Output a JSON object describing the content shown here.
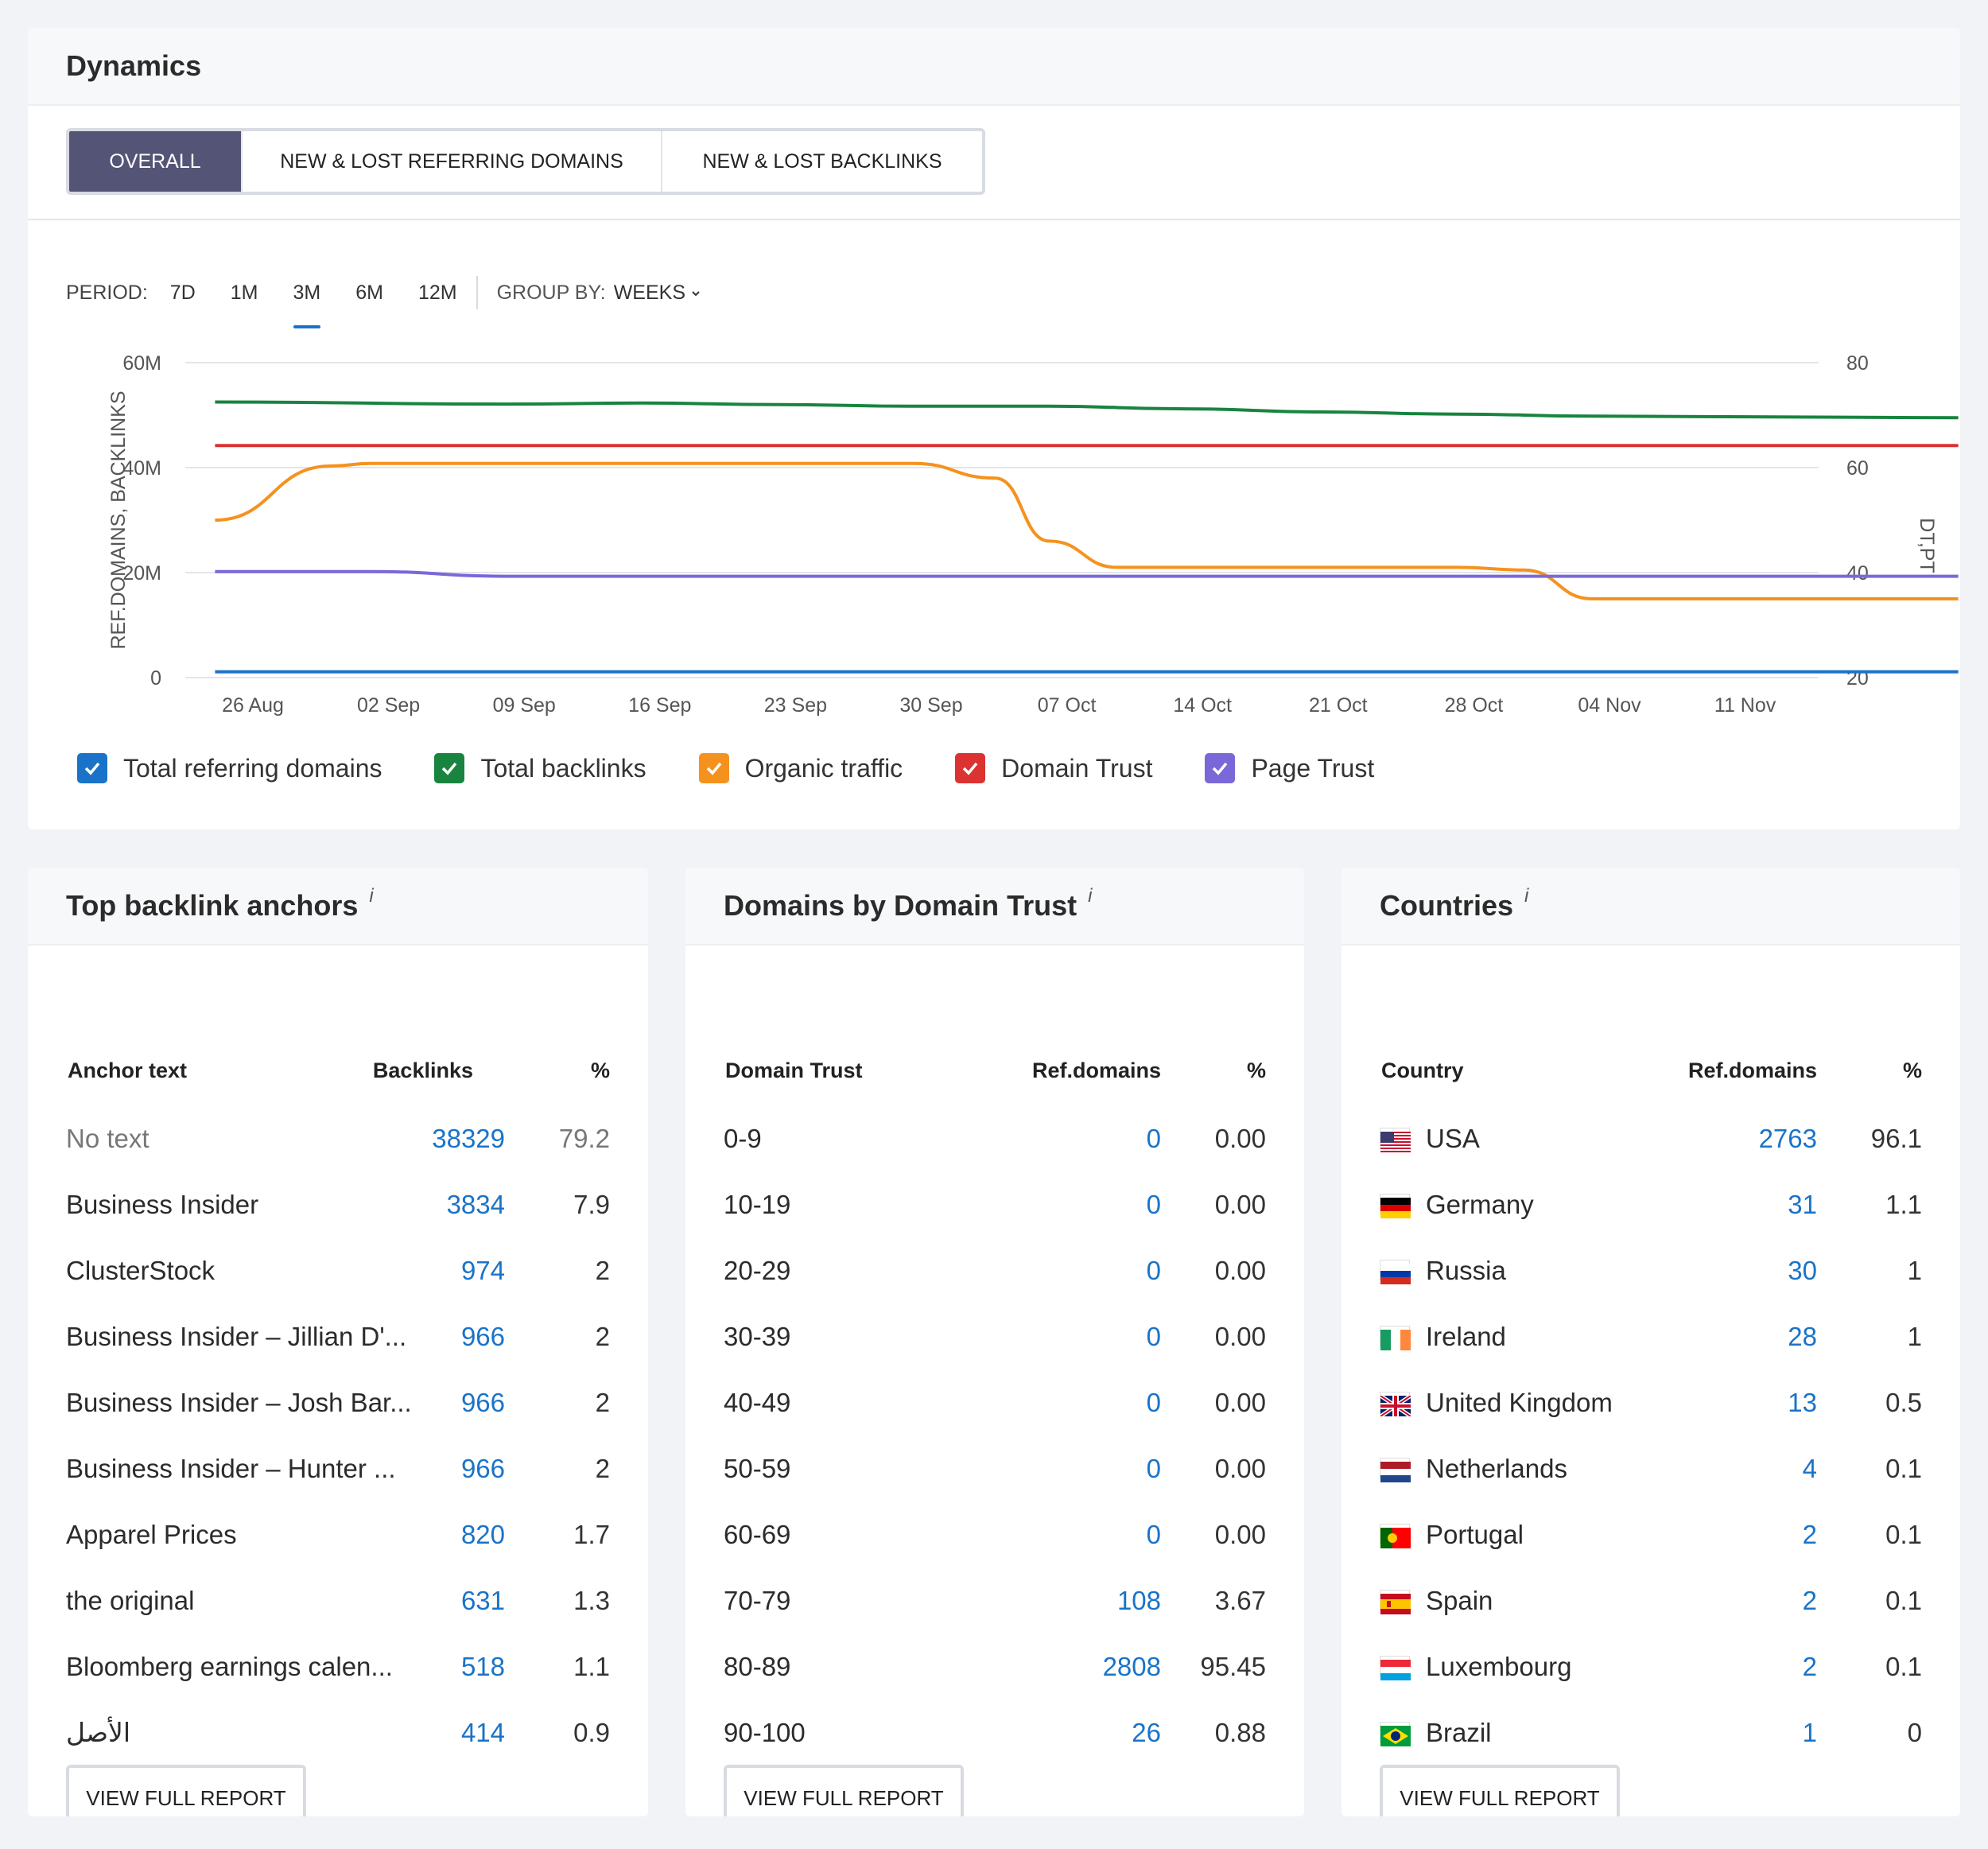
{
  "dynamics": {
    "title": "Dynamics",
    "tabs": [
      "OVERALL",
      "NEW & LOST REFERRING DOMAINS",
      "NEW & LOST BACKLINKS"
    ],
    "active_tab": 0,
    "period_label": "PERIOD:",
    "periods": [
      "7D",
      "1M",
      "3M",
      "6M",
      "12M"
    ],
    "active_period": 2,
    "group_by_label": "GROUP BY:",
    "group_by_value": "WEEKS",
    "chevron_icon": "chevron-down-icon",
    "legend": [
      {
        "label": "Total referring domains",
        "color": "#1a73c8",
        "checked": true
      },
      {
        "label": "Total backlinks",
        "color": "#18843f",
        "checked": true
      },
      {
        "label": "Organic traffic",
        "color": "#f5921e",
        "checked": true
      },
      {
        "label": "Domain Trust",
        "color": "#dc3232",
        "checked": true
      },
      {
        "label": "Page Trust",
        "color": "#7a68d8",
        "checked": true
      }
    ]
  },
  "chart_data": {
    "type": "line",
    "x": [
      "26 Aug",
      "02 Sep",
      "09 Sep",
      "16 Sep",
      "23 Sep",
      "30 Sep",
      "07 Oct",
      "14 Oct",
      "21 Oct",
      "28 Oct",
      "04 Nov",
      "11 Nov"
    ],
    "x_extended_end": 12.7,
    "ylabel_left": "REF.DOMAINS, BACKLINKS",
    "ylabel_right": "DT,PT",
    "y_left_ticks": [
      "0",
      "20M",
      "40M",
      "60M"
    ],
    "y_left_range": [
      0,
      60
    ],
    "y_right_ticks": [
      "20",
      "40",
      "60",
      "80"
    ],
    "y_right_range": [
      20,
      80
    ],
    "series": [
      {
        "name": "Total referring domains",
        "axis": "left",
        "color": "#1a73c8",
        "points": [
          [
            -0.15,
            1.1
          ],
          [
            12.7,
            1.1
          ]
        ]
      },
      {
        "name": "Total backlinks",
        "axis": "left",
        "color": "#18843f",
        "points": [
          [
            -0.15,
            52.5
          ],
          [
            2,
            52.1
          ],
          [
            3,
            52.3
          ],
          [
            4,
            52
          ],
          [
            5,
            51.7
          ],
          [
            6,
            51.7
          ],
          [
            7,
            51.2
          ],
          [
            8,
            50.6
          ],
          [
            9,
            50.2
          ],
          [
            10,
            49.8
          ],
          [
            11,
            49.7
          ],
          [
            12.7,
            49.5
          ]
        ]
      },
      {
        "name": "Organic traffic",
        "axis": "left",
        "color": "#f5921e",
        "points": [
          [
            -0.15,
            30
          ],
          [
            0.7,
            40.3
          ],
          [
            1,
            40.8
          ],
          [
            2,
            40.8
          ],
          [
            3,
            40.8
          ],
          [
            4,
            40.8
          ],
          [
            5,
            40.8
          ],
          [
            5.6,
            38
          ],
          [
            6,
            26
          ],
          [
            6.5,
            21
          ],
          [
            7,
            21
          ],
          [
            8,
            21
          ],
          [
            9,
            21
          ],
          [
            9.5,
            20.5
          ],
          [
            10,
            15
          ],
          [
            11,
            15
          ],
          [
            12.7,
            15
          ]
        ]
      },
      {
        "name": "Domain Trust",
        "axis": "right",
        "color": "#dc3232",
        "points": [
          [
            -0.15,
            64.2
          ],
          [
            12.7,
            64.2
          ]
        ]
      },
      {
        "name": "Page Trust",
        "axis": "right",
        "color": "#7a68d8",
        "points": [
          [
            -0.15,
            40.2
          ],
          [
            1,
            40.2
          ],
          [
            2,
            39.3
          ],
          [
            3,
            39.3
          ],
          [
            12.7,
            39.3
          ]
        ]
      }
    ]
  },
  "anchors": {
    "title": "Top backlink anchors",
    "info": "i",
    "headers": [
      "Anchor text",
      "Backlinks",
      "%"
    ],
    "rows": [
      {
        "text": "No text",
        "value": "38329",
        "pct": "79.2",
        "muted": true
      },
      {
        "text": "Business Insider",
        "value": "3834",
        "pct": "7.9"
      },
      {
        "text": "ClusterStock",
        "value": "974",
        "pct": "2"
      },
      {
        "text": "Business Insider – Jillian D'...",
        "value": "966",
        "pct": "2"
      },
      {
        "text": "Business Insider – Josh Bar...",
        "value": "966",
        "pct": "2"
      },
      {
        "text": "Business Insider – Hunter ...",
        "value": "966",
        "pct": "2"
      },
      {
        "text": "Apparel Prices",
        "value": "820",
        "pct": "1.7"
      },
      {
        "text": "the original",
        "value": "631",
        "pct": "1.3"
      },
      {
        "text": "Bloomberg earnings calen...",
        "value": "518",
        "pct": "1.1"
      },
      {
        "text": "الأصل",
        "value": "414",
        "pct": "0.9"
      }
    ],
    "button": "VIEW FULL REPORT"
  },
  "trust": {
    "title": "Domains by Domain Trust",
    "info": "i",
    "headers": [
      "Domain Trust",
      "Ref.domains",
      "%"
    ],
    "rows": [
      {
        "text": "0-9",
        "value": "0",
        "pct": "0.00"
      },
      {
        "text": "10-19",
        "value": "0",
        "pct": "0.00"
      },
      {
        "text": "20-29",
        "value": "0",
        "pct": "0.00"
      },
      {
        "text": "30-39",
        "value": "0",
        "pct": "0.00"
      },
      {
        "text": "40-49",
        "value": "0",
        "pct": "0.00"
      },
      {
        "text": "50-59",
        "value": "0",
        "pct": "0.00"
      },
      {
        "text": "60-69",
        "value": "0",
        "pct": "0.00"
      },
      {
        "text": "70-79",
        "value": "108",
        "pct": "3.67"
      },
      {
        "text": "80-89",
        "value": "2808",
        "pct": "95.45"
      },
      {
        "text": "90-100",
        "value": "26",
        "pct": "0.88"
      }
    ],
    "button": "VIEW FULL REPORT"
  },
  "countries": {
    "title": "Countries",
    "info": "i",
    "headers": [
      "Country",
      "Ref.domains",
      "%"
    ],
    "rows": [
      {
        "text": "USA",
        "value": "2763",
        "pct": "96.1",
        "flag": "us"
      },
      {
        "text": "Germany",
        "value": "31",
        "pct": "1.1",
        "flag": "de"
      },
      {
        "text": "Russia",
        "value": "30",
        "pct": "1",
        "flag": "ru"
      },
      {
        "text": "Ireland",
        "value": "28",
        "pct": "1",
        "flag": "ie"
      },
      {
        "text": "United Kingdom",
        "value": "13",
        "pct": "0.5",
        "flag": "gb"
      },
      {
        "text": "Netherlands",
        "value": "4",
        "pct": "0.1",
        "flag": "nl"
      },
      {
        "text": "Portugal",
        "value": "2",
        "pct": "0.1",
        "flag": "pt"
      },
      {
        "text": "Spain",
        "value": "2",
        "pct": "0.1",
        "flag": "es"
      },
      {
        "text": "Luxembourg",
        "value": "2",
        "pct": "0.1",
        "flag": "lu"
      },
      {
        "text": "Brazil",
        "value": "1",
        "pct": "0",
        "flag": "br"
      }
    ],
    "button": "VIEW FULL REPORT"
  }
}
